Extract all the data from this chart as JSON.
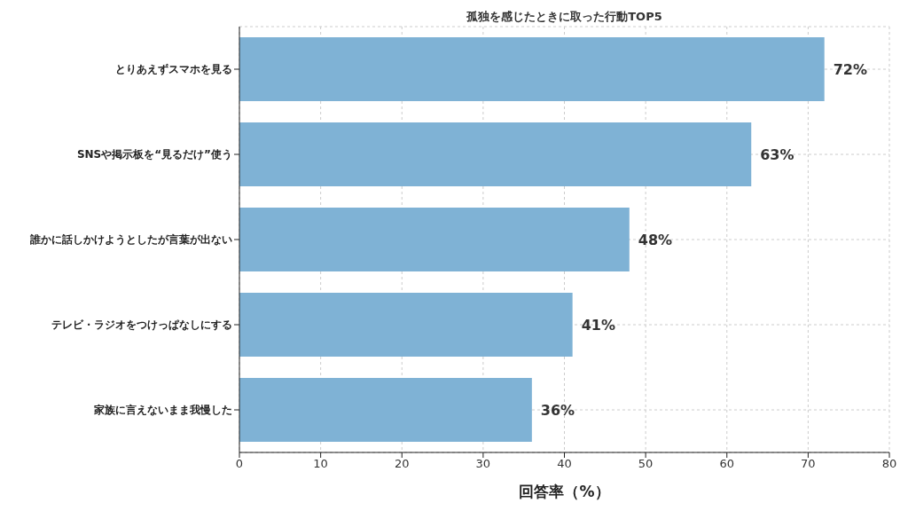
{
  "chart_data": {
    "type": "bar",
    "orientation": "horizontal",
    "title": "孤独を感じたときに取った行動TOP5",
    "xlabel": "回答率（%）",
    "categories": [
      "とりあえずスマホを見る",
      "SNSや掲示板を“見るだけ”使う",
      "誰かに話しかけようとしたが言葉が出ない",
      "テレビ・ラジオをつけっぱなしにする",
      "家族に言えないまま我慢した"
    ],
    "values": [
      72,
      63,
      48,
      41,
      36
    ],
    "value_labels": [
      "72%",
      "63%",
      "48%",
      "41%",
      "36%"
    ],
    "color": "#7fb2d5",
    "xlim": [
      0,
      80
    ],
    "xticks": [
      0,
      10,
      20,
      30,
      40,
      50,
      60,
      70,
      80
    ],
    "grid": true,
    "legend": false
  }
}
